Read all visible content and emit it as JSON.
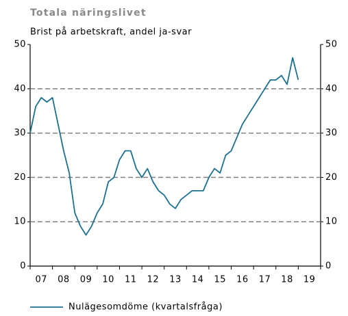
{
  "chart_data": {
    "type": "line",
    "title": "Totala näringslivet",
    "subtitle": "Brist på arbetskraft, andel ja-svar",
    "x": [
      2007,
      2007.25,
      2007.5,
      2007.75,
      2008,
      2008.25,
      2008.5,
      2008.75,
      2009,
      2009.25,
      2009.5,
      2009.75,
      2010,
      2010.25,
      2010.5,
      2010.75,
      2011,
      2011.25,
      2011.5,
      2011.75,
      2012,
      2012.25,
      2012.5,
      2012.75,
      2013,
      2013.25,
      2013.5,
      2013.75,
      2014,
      2014.25,
      2014.5,
      2014.75,
      2015,
      2015.25,
      2015.5,
      2015.75,
      2016,
      2016.25,
      2016.5,
      2016.75,
      2017,
      2017.25,
      2017.5,
      2017.75,
      2018,
      2018.25,
      2018.5,
      2018.75,
      2019
    ],
    "series": [
      {
        "name": "Nulägesomdöme (kvartalsfråga)",
        "color": "#1b6f8f",
        "values": [
          30,
          36,
          38,
          37,
          38,
          32,
          26,
          21,
          12,
          9,
          7,
          9,
          12,
          14,
          19,
          20,
          24,
          26,
          26,
          22,
          20,
          22,
          19,
          17,
          16,
          14,
          13,
          15,
          16,
          17,
          17,
          17,
          20,
          22,
          21,
          25,
          26,
          29,
          32,
          34,
          36,
          38,
          40,
          42,
          42,
          43,
          41,
          47,
          42
        ]
      }
    ],
    "xlim": [
      2007,
      2020
    ],
    "xticks": [
      {
        "value": 2007.5,
        "label": "07"
      },
      {
        "value": 2008.5,
        "label": "08"
      },
      {
        "value": 2009.5,
        "label": "09"
      },
      {
        "value": 2010.5,
        "label": "10"
      },
      {
        "value": 2011.5,
        "label": "11"
      },
      {
        "value": 2012.5,
        "label": "12"
      },
      {
        "value": 2013.5,
        "label": "13"
      },
      {
        "value": 2014.5,
        "label": "14"
      },
      {
        "value": 2015.5,
        "label": "15"
      },
      {
        "value": 2016.5,
        "label": "16"
      },
      {
        "value": 2017.5,
        "label": "17"
      },
      {
        "value": 2018.5,
        "label": "18"
      },
      {
        "value": 2019.5,
        "label": "19"
      }
    ],
    "ylim": [
      0,
      50
    ],
    "yticks": [
      0,
      10,
      20,
      30,
      40,
      50
    ],
    "grid": true
  }
}
